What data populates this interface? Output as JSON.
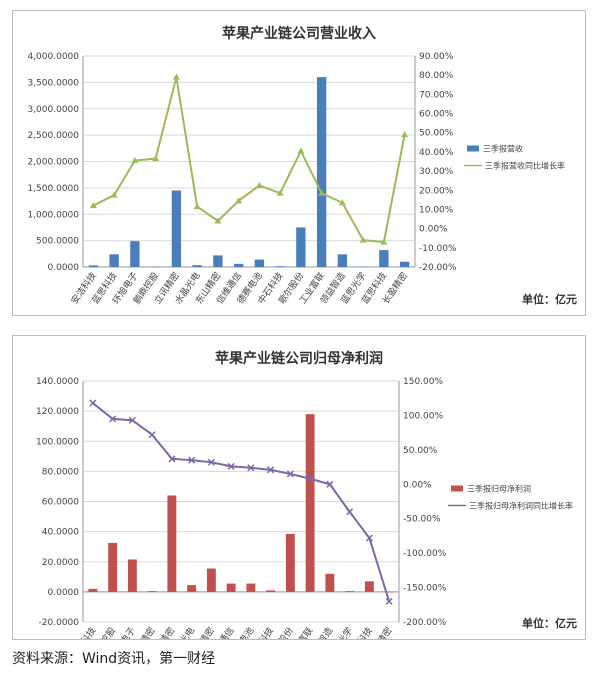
{
  "source_text": "资料来源：Wind资讯，第一财经",
  "chart_data": [
    {
      "type": "bar",
      "title": "苹果产业链公司营业收入",
      "unit": "单位：亿元",
      "categories": [
        "安洁科技",
        "蓝思科技",
        "环旭电子",
        "鹏鼎控股",
        "立讯精密",
        "水晶光电",
        "东山精密",
        "信维通信",
        "德赛电池",
        "中石科技",
        "歌尔股份",
        "工业富联",
        "领益智造",
        "蓝思光学",
        "蓝思科技",
        "长盈精密"
      ],
      "ylim_left": [
        0,
        4000
      ],
      "ylim_right": [
        -20,
        90
      ],
      "left_ticks": [
        "0.0000",
        "500.0000",
        "1,000.0000",
        "1,500.0000",
        "2,000.0000",
        "2,500.0000",
        "3,000.0000",
        "3,500.0000",
        "4,000.0000"
      ],
      "right_ticks": [
        "-20.00%",
        "-10.00%",
        "0.00%",
        "10.00%",
        "20.00%",
        "30.00%",
        "40.00%",
        "50.00%",
        "60.00%",
        "70.00%",
        "80.00%",
        "90.00%"
      ],
      "series": [
        {
          "name": "三季报营收",
          "kind": "bar",
          "axis": "left",
          "color": "#4a7ebb",
          "values": [
            30,
            240,
            490,
            10,
            1450,
            35,
            220,
            60,
            140,
            15,
            750,
            3600,
            240,
            10,
            320,
            100
          ]
        },
        {
          "name": "三季报营收同比增长率",
          "kind": "line",
          "axis": "right",
          "color": "#9bbb59",
          "values": [
            12,
            17.5,
            35.5,
            36.5,
            79,
            11.5,
            4,
            14.5,
            22.5,
            18.5,
            40.5,
            18.5,
            13.5,
            -6,
            -7,
            49
          ]
        }
      ]
    },
    {
      "type": "bar",
      "title": "苹果产业链公司归母净利润",
      "unit": "单位：亿元",
      "categories": [
        "安洁科技",
        "鹏鼎控股",
        "环旭电子",
        "蓝思精密",
        "立讯精密",
        "水晶光电",
        "东山精密",
        "信维通信",
        "德赛电池",
        "中石科技",
        "歌尔股份",
        "工业富联",
        "领益智造",
        "蓝思光学",
        "蓝思科技",
        "长盈精密"
      ],
      "ylim_left": [
        -20,
        140
      ],
      "ylim_right": [
        -200,
        150
      ],
      "left_ticks": [
        "-20.0000",
        "0.0000",
        "20.0000",
        "40.0000",
        "60.0000",
        "80.0000",
        "100.0000",
        "120.0000",
        "140.0000"
      ],
      "right_ticks": [
        "-200.00%",
        "-150.00%",
        "-100.00%",
        "-50.00%",
        "0.00%",
        "50.00%",
        "100.00%",
        "150.00%"
      ],
      "series": [
        {
          "name": "三季报归母净利润",
          "kind": "bar",
          "axis": "left",
          "color": "#c0504d",
          "values": [
            2,
            32.5,
            21.5,
            0.5,
            64,
            4.5,
            15.5,
            5.5,
            5.5,
            1,
            38.5,
            118,
            12,
            0.5,
            7,
            0
          ]
        },
        {
          "name": "三季报归母净利润同比增长率",
          "kind": "line",
          "axis": "right",
          "color": "#7e67a8",
          "values": [
            118,
            95,
            93,
            72,
            37,
            35,
            32,
            26,
            24,
            21,
            15,
            8,
            0,
            -40,
            -78,
            -170
          ]
        }
      ]
    }
  ]
}
